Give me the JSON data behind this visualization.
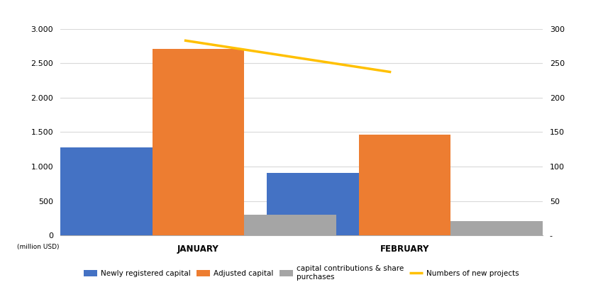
{
  "categories": [
    "JANUARY",
    "FEBRUARY"
  ],
  "newly_registered": [
    1280,
    910
  ],
  "adjusted_capital": [
    2710,
    1460
  ],
  "capital_contributions": [
    300,
    205
  ],
  "new_projects": [
    283,
    237
  ],
  "bar_colors": {
    "newly_registered": "#4472C4",
    "adjusted_capital": "#ED7D31",
    "capital_contributions": "#A5A5A5"
  },
  "line_color": "#FFC000",
  "ylim_left": [
    0,
    3000
  ],
  "ylim_right": [
    0,
    300
  ],
  "yticks_left": [
    0,
    500,
    1000,
    1500,
    2000,
    2500,
    3000
  ],
  "yticks_right": [
    0,
    50,
    100,
    150,
    200,
    250,
    300
  ],
  "ylabel_left": "(million USD)",
  "legend_labels": [
    "Newly registered capital",
    "Adjusted capital",
    "capital contributions & share\npurchases",
    "Numbers of new projects"
  ],
  "background_color": "#FFFFFF",
  "grid_color": "#D9D9D9",
  "bar_width": 0.2,
  "group_centers": [
    0.3,
    0.75
  ],
  "xlim": [
    0.0,
    1.05
  ],
  "line_x": [
    0.27,
    0.72
  ]
}
